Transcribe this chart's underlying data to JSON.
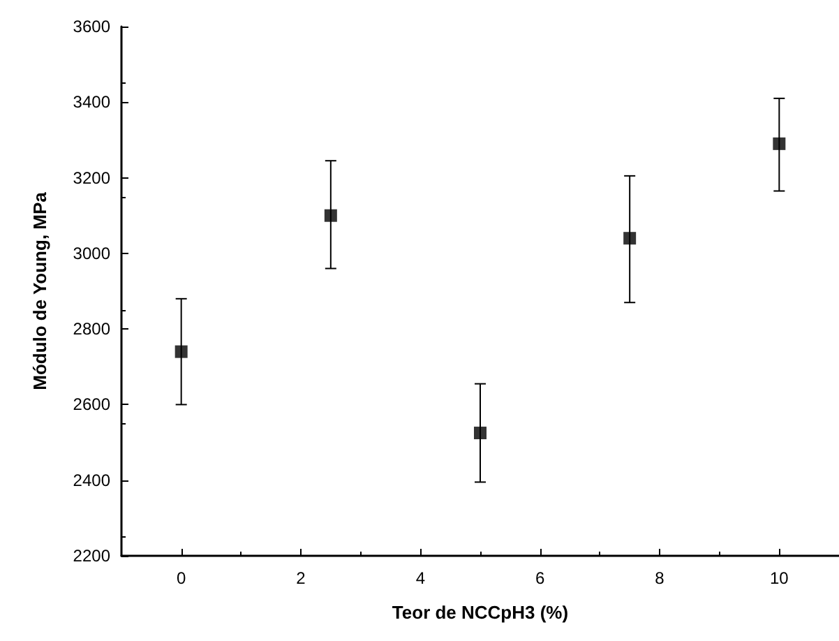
{
  "chart_data": {
    "type": "scatter",
    "xlabel": "Teor de NCCpH3 (%)",
    "ylabel": "Módulo de Young, MPa",
    "x": [
      0,
      2.5,
      5,
      7.5,
      10
    ],
    "values": [
      2740,
      3100,
      2525,
      3040,
      3290
    ],
    "errors": [
      [
        2600,
        2880
      ],
      [
        2960,
        3245
      ],
      [
        2395,
        2655
      ],
      [
        2870,
        3205
      ],
      [
        3165,
        3410
      ]
    ],
    "color": "#000000",
    "marker": "square",
    "grid": false,
    "xlim": [
      -1,
      11
    ],
    "xticks": [
      0,
      2,
      4,
      6,
      8,
      10
    ],
    "ylim": [
      2200,
      3600
    ],
    "yticks": [
      2200,
      2400,
      2600,
      2800,
      3000,
      3200,
      3400,
      3600
    ]
  }
}
